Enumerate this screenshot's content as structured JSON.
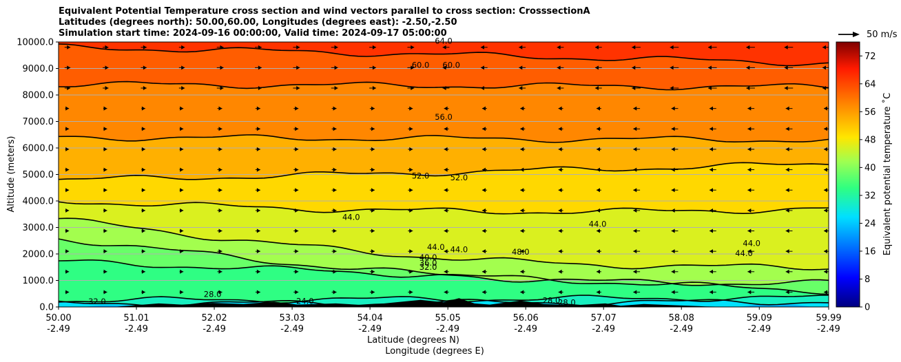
{
  "chart_data": {
    "type": "contour",
    "title": [
      "Equivalent Potential Temperature cross section and wind vectors parallel to cross section: CrosssectionA",
      "Latitudes (degrees north): 50.00,60.00, Longitudes (degrees east): -2.50,-2.50",
      "Simulation start time: 2024-09-16 00:00:00, Valid time: 2024-09-17 05:00:00"
    ],
    "ylabel": "Altitude (meters)",
    "xlabel_lat": "Latitude (degrees N)",
    "xlabel_lon": "Longitude (degrees E)",
    "ylim": [
      0,
      10000
    ],
    "xlim": [
      50.0,
      59.99
    ],
    "yticks": [
      0,
      1000,
      2000,
      3000,
      4000,
      5000,
      6000,
      7000,
      8000,
      9000,
      10000
    ],
    "ytick_labels": [
      "0.0",
      "1000.0",
      "2000.0",
      "3000.0",
      "4000.0",
      "5000.0",
      "6000.0",
      "7000.0",
      "8000.0",
      "9000.0",
      "10000.0"
    ],
    "xticks": [
      {
        "lat": "50.00",
        "lon": "-2.49"
      },
      {
        "lat": "51.01",
        "lon": "-2.49"
      },
      {
        "lat": "52.02",
        "lon": "-2.49"
      },
      {
        "lat": "53.03",
        "lon": "-2.49"
      },
      {
        "lat": "54.04",
        "lon": "-2.49"
      },
      {
        "lat": "55.05",
        "lon": "-2.49"
      },
      {
        "lat": "56.06",
        "lon": "-2.49"
      },
      {
        "lat": "57.07",
        "lon": "-2.49"
      },
      {
        "lat": "58.08",
        "lon": "-2.49"
      },
      {
        "lat": "59.09",
        "lon": "-2.49"
      },
      {
        "lat": "59.99",
        "lon": "-2.49"
      }
    ],
    "colorbar": {
      "label": "Equivalent potential temperature ˚C",
      "range": [
        0,
        76
      ],
      "ticks": [
        "0",
        "8",
        "16",
        "24",
        "32",
        "40",
        "48",
        "56",
        "64",
        "72"
      ],
      "colormap": "jet"
    },
    "contour_levels": [
      {
        "value": 24,
        "height_left": 0,
        "height_right": 0
      },
      {
        "value": 28,
        "height_left": 120,
        "height_right": 200
      },
      {
        "value": 32,
        "height_left": 250,
        "height_right": 350
      },
      {
        "value": 36,
        "height_left": 1700,
        "height_right": 600
      },
      {
        "value": 40,
        "height_left": 2600,
        "height_right": 900
      },
      {
        "value": 44,
        "height_left": 3300,
        "height_right": 1500
      },
      {
        "value": 48,
        "height_left": 4000,
        "height_right": 3700
      },
      {
        "value": 52,
        "height_left": 4800,
        "height_right": 5400
      },
      {
        "value": 56,
        "height_left": 6400,
        "height_right": 6300
      },
      {
        "value": 60,
        "height_left": 8400,
        "height_right": 8300
      },
      {
        "value": 64,
        "height_left": 9800,
        "height_right": 9200
      }
    ],
    "contour_labels": [
      "60.0",
      "60.0",
      "56.0",
      "52.0",
      "52.0",
      "44.0",
      "44.0",
      "44.0",
      "44.0",
      "48.0",
      "44.0",
      "44.0",
      "40.0",
      "36.0",
      "32.0",
      "28.0",
      "24.0",
      "28.0",
      "32.0",
      "28.0",
      "64.0"
    ],
    "wind_direction_note": "vectors point toward increasing latitude at left, decreasing latitude at right",
    "reference_vector_label": "50 m/s"
  }
}
